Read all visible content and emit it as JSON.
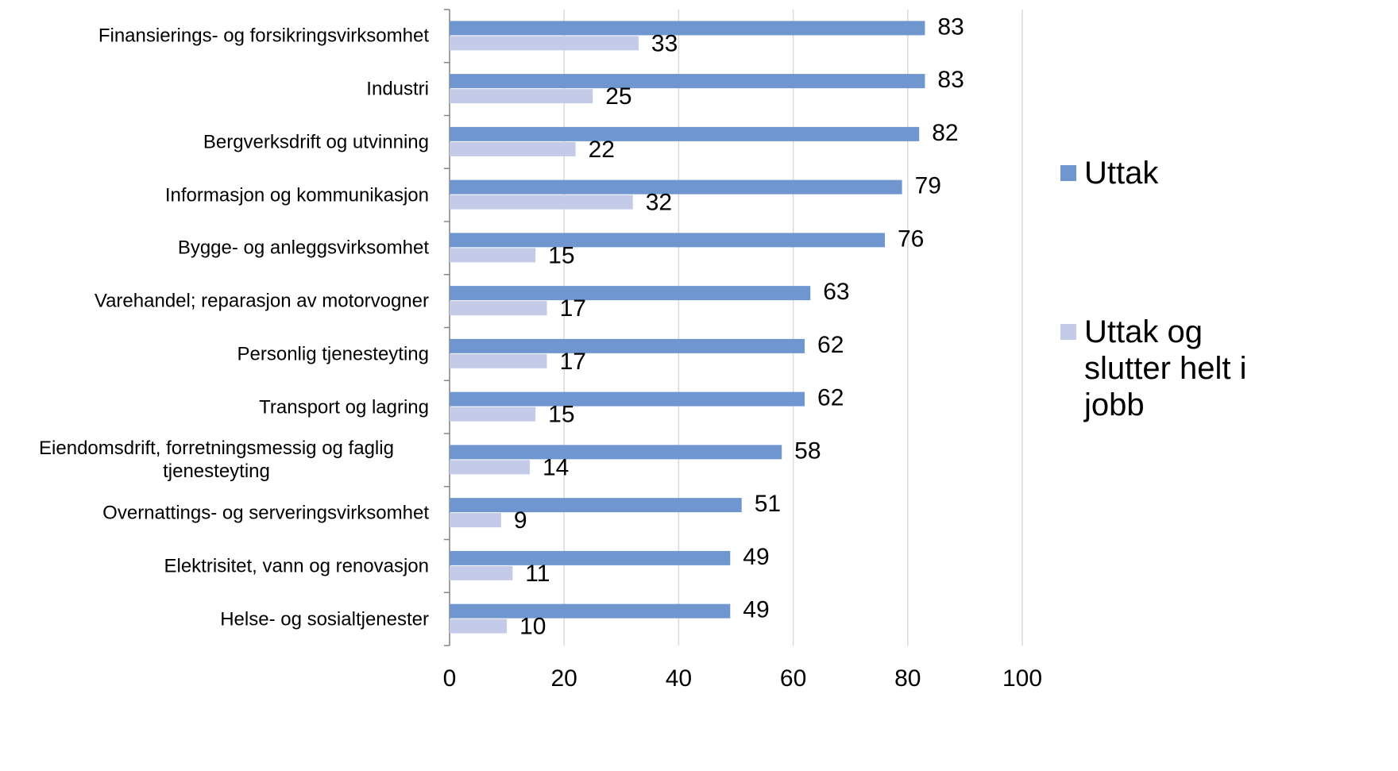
{
  "chart_data": {
    "type": "bar",
    "orientation": "horizontal",
    "categories": [
      "Finansierings- og forsikringsvirksomhet",
      "Industri",
      "Bergverksdrift og utvinning",
      "Informasjon og kommunikasjon",
      "Bygge- og anleggsvirksomhet",
      "Varehandel; reparasjon av motorvogner",
      "Personlig tjenesteyting",
      "Transport og lagring",
      "Eiendomsdrift, forretningsmessig og faglig tjenesteyting",
      "Overnattings- og serveringsvirksomhet",
      "Elektrisitet, vann og renovasjon",
      "Helse- og sosialtjenester"
    ],
    "series": [
      {
        "name": "Uttak",
        "color": "#6f96cf",
        "values": [
          83,
          83,
          82,
          79,
          76,
          63,
          62,
          62,
          58,
          51,
          49,
          49
        ]
      },
      {
        "name": "Uttak og slutter helt i jobb",
        "color": "#c3cbe8",
        "values": [
          33,
          25,
          22,
          32,
          15,
          17,
          17,
          15,
          14,
          9,
          11,
          10
        ]
      }
    ],
    "xlim": [
      0,
      100
    ],
    "xticks": [
      0,
      20,
      40,
      60,
      80,
      100
    ],
    "grid": true,
    "legend": "right"
  }
}
